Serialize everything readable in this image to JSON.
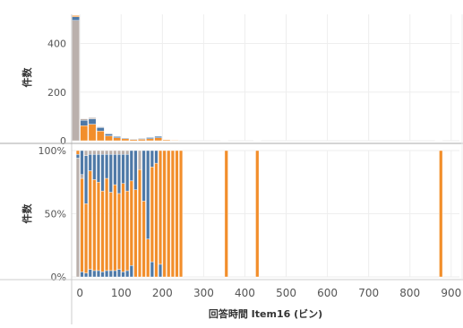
{
  "colors": {
    "orange": "#f28e2b",
    "blue": "#4e79a7",
    "gray": "#bab0ac",
    "grid": "#eeeeee",
    "axis_text": "#555555",
    "title_text": "#333333"
  },
  "chart_data": [
    {
      "type": "bar",
      "panel": "top",
      "subtype": "stacked histogram (count)",
      "ylabel": "件数",
      "ylim": [
        0,
        520
      ],
      "yticks": [
        0,
        200,
        400
      ],
      "grid": true,
      "bin_width": 20,
      "bins": [
        {
          "x": -10,
          "segments": {
            "gray": 495,
            "blue": 15,
            "orange": 5
          }
        },
        {
          "x": 10,
          "segments": {
            "orange": 62,
            "blue": 22,
            "gray": 6
          }
        },
        {
          "x": 30,
          "segments": {
            "orange": 68,
            "blue": 22,
            "gray": 5
          }
        },
        {
          "x": 50,
          "segments": {
            "orange": 40,
            "blue": 14,
            "gray": 3
          }
        },
        {
          "x": 70,
          "segments": {
            "orange": 20,
            "blue": 8,
            "gray": 2
          }
        },
        {
          "x": 90,
          "segments": {
            "orange": 12,
            "blue": 5
          }
        },
        {
          "x": 110,
          "segments": {
            "orange": 8,
            "blue": 3
          }
        },
        {
          "x": 130,
          "segments": {
            "orange": 5,
            "blue": 2
          }
        },
        {
          "x": 150,
          "segments": {
            "orange": 6,
            "blue": 3
          }
        },
        {
          "x": 170,
          "segments": {
            "orange": 8,
            "blue": 5
          }
        },
        {
          "x": 190,
          "segments": {
            "orange": 12,
            "blue": 6
          }
        },
        {
          "x": 210,
          "segments": {
            "orange": 4,
            "blue": 1
          }
        },
        {
          "x": 230,
          "segments": {
            "orange": 2
          }
        },
        {
          "x": 350,
          "segments": {
            "orange": 1
          }
        },
        {
          "x": 430,
          "segments": {
            "orange": 1
          }
        },
        {
          "x": 870,
          "segments": {
            "orange": 1
          }
        }
      ]
    },
    {
      "type": "bar",
      "panel": "bottom",
      "subtype": "100% stacked histogram (percent of count)",
      "ylabel": "件数",
      "ylim": [
        0,
        1
      ],
      "ytick_labels": [
        "0%",
        "50%",
        "100%"
      ],
      "yticks": [
        0,
        0.5,
        1
      ],
      "xlabel": "回答時間 Item16 (ビン)",
      "xlim": [
        -20,
        920
      ],
      "xticks": [
        0,
        100,
        200,
        300,
        400,
        500,
        600,
        700,
        800,
        900
      ],
      "grid": true,
      "bin_width": 10,
      "bins": [
        {
          "x": -5,
          "segments": {
            "gray": 0.94,
            "blue": 0.03,
            "orange": 0.03
          }
        },
        {
          "x": 5,
          "segments": {
            "blue": 0.04,
            "orange": 0.74,
            "gray": 0.03,
            "blue2": 0.19
          }
        },
        {
          "x": 15,
          "segments": {
            "blue": 0.03,
            "orange": 0.55,
            "blue2": 0.38,
            "gray": 0.04
          }
        },
        {
          "x": 25,
          "segments": {
            "blue": 0.06,
            "orange": 0.78,
            "blue2": 0.13,
            "gray": 0.03
          }
        },
        {
          "x": 35,
          "segments": {
            "blue": 0.05,
            "orange": 0.72,
            "blue2": 0.2,
            "gray": 0.03
          }
        },
        {
          "x": 45,
          "segments": {
            "blue": 0.05,
            "orange": 0.7,
            "blue2": 0.22,
            "gray": 0.03
          }
        },
        {
          "x": 55,
          "segments": {
            "blue": 0.04,
            "orange": 0.64,
            "blue2": 0.29,
            "gray": 0.03
          }
        },
        {
          "x": 65,
          "segments": {
            "blue": 0.05,
            "orange": 0.73,
            "blue2": 0.19,
            "gray": 0.03
          }
        },
        {
          "x": 75,
          "segments": {
            "blue": 0.05,
            "orange": 0.62,
            "blue2": 0.3,
            "gray": 0.03
          }
        },
        {
          "x": 85,
          "segments": {
            "blue": 0.05,
            "orange": 0.68,
            "blue2": 0.24,
            "gray": 0.03
          }
        },
        {
          "x": 95,
          "segments": {
            "blue": 0.06,
            "orange": 0.6,
            "blue2": 0.31,
            "gray": 0.03
          }
        },
        {
          "x": 105,
          "segments": {
            "blue": 0.04,
            "orange": 0.7,
            "blue2": 0.23,
            "gray": 0.03
          }
        },
        {
          "x": 115,
          "segments": {
            "blue": 0.05,
            "orange": 0.63,
            "blue2": 0.29,
            "gray": 0.03
          }
        },
        {
          "x": 125,
          "segments": {
            "blue": 0.09,
            "orange": 0.67,
            "blue2": 0.24
          }
        },
        {
          "x": 135,
          "segments": {
            "orange": 0.69,
            "blue2": 0.31
          }
        },
        {
          "x": 145,
          "segments": {
            "orange": 0.85,
            "gray": 0.15
          }
        },
        {
          "x": 155,
          "segments": {
            "orange": 0.6,
            "blue2": 0.4
          }
        },
        {
          "x": 165,
          "segments": {
            "orange": 0.3,
            "blue2": 0.7
          }
        },
        {
          "x": 175,
          "segments": {
            "blue": 0.12,
            "orange": 0.75,
            "blue2": 0.13
          }
        },
        {
          "x": 185,
          "segments": {
            "orange": 0.9,
            "blue2": 0.1
          }
        },
        {
          "x": 195,
          "segments": {
            "blue": 0.1,
            "orange": 0.9
          }
        },
        {
          "x": 205,
          "segments": {
            "orange": 1.0
          }
        },
        {
          "x": 215,
          "segments": {
            "orange": 1.0
          }
        },
        {
          "x": 225,
          "segments": {
            "orange": 1.0
          }
        },
        {
          "x": 235,
          "segments": {
            "orange": 1.0
          }
        },
        {
          "x": 245,
          "segments": {
            "orange": 1.0
          }
        },
        {
          "x": 355,
          "segments": {
            "orange": 1.0
          }
        },
        {
          "x": 430,
          "segments": {
            "orange": 1.0
          }
        },
        {
          "x": 875,
          "segments": {
            "orange": 1.0
          }
        }
      ]
    }
  ]
}
